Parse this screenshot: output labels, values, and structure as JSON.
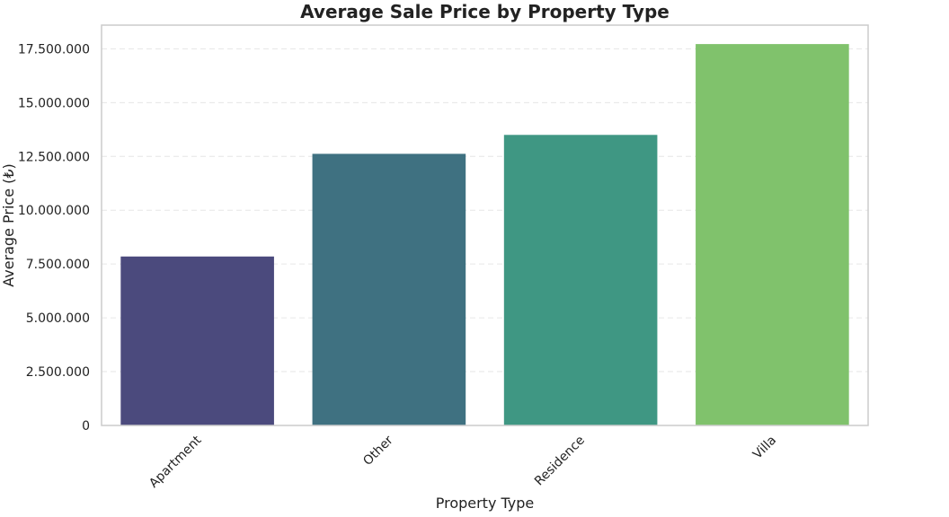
{
  "chart_data": {
    "type": "bar",
    "title": "Average Sale Price by Property Type",
    "xlabel": "Property Type",
    "ylabel": "Average Price (₺)",
    "categories": [
      "Apartment",
      "Other",
      "Residence",
      "Villa"
    ],
    "values": [
      7850000,
      12620000,
      13500000,
      17720000
    ],
    "colors": [
      "#4b4a7d",
      "#3f7181",
      "#3f9783",
      "#80c26c"
    ],
    "ylim": [
      0,
      18600000
    ],
    "yticks": [
      0,
      2500000,
      5000000,
      7500000,
      10000000,
      12500000,
      15000000,
      17500000
    ],
    "ytick_labels": [
      "0",
      "2.500.000",
      "5.000.000",
      "7.500.000",
      "10.000.000",
      "12.500.000",
      "15.000.000",
      "17.500.000"
    ],
    "grid": true,
    "legend": "none"
  }
}
